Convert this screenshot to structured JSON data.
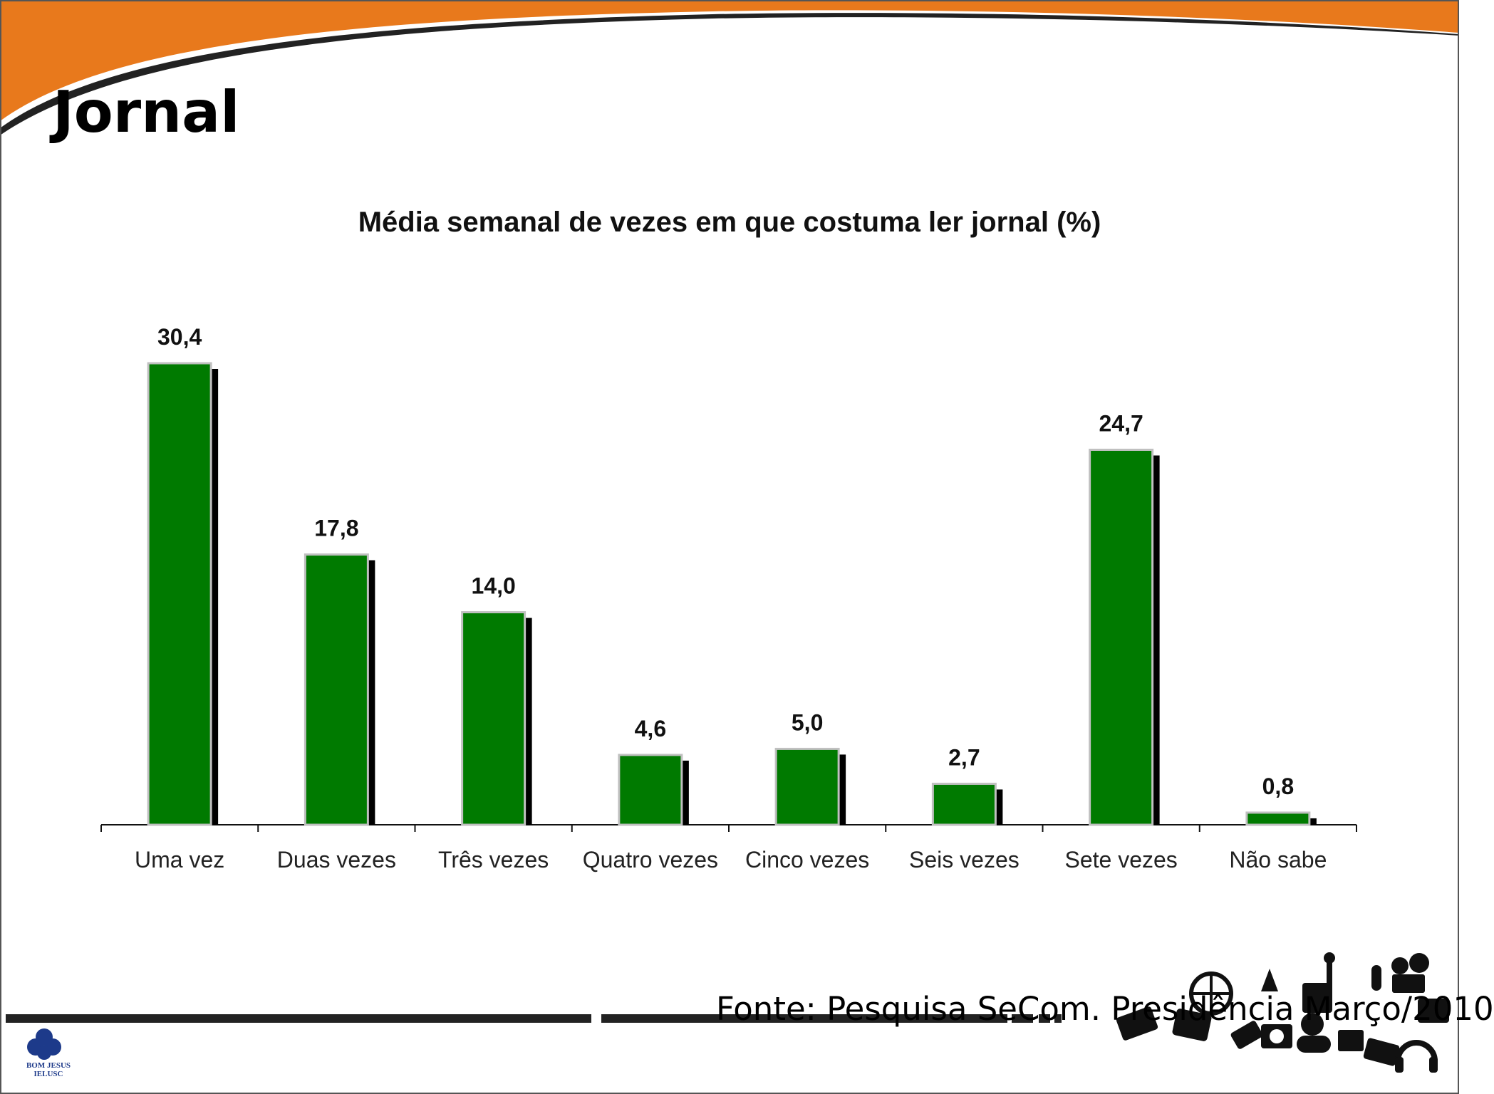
{
  "slide": {
    "title": "Jornal",
    "source": "Fonte: Pesquisa SeCom. Presidência Março/2010",
    "logo": {
      "line1": "BOM JESUS",
      "line2": "IELUSC"
    }
  },
  "colors": {
    "accent_orange": "#e8791c",
    "bar_fill": "#007a00",
    "bar_shadow": "#000000",
    "bar_border": "#c0c0c0"
  },
  "chart_data": {
    "type": "bar",
    "title": "Média semanal de vezes em que costuma ler jornal (%)",
    "xlabel": "",
    "ylabel": "",
    "categories": [
      "Uma vez",
      "Duas vezes",
      "Três vezes",
      "Quatro vezes",
      "Cinco vezes",
      "Seis vezes",
      "Sete vezes",
      "Não sabe"
    ],
    "values": [
      30.4,
      17.8,
      14.0,
      4.6,
      5.0,
      2.7,
      24.7,
      0.8
    ],
    "data_labels": [
      "30,4",
      "17,8",
      "14,0",
      "4,6",
      "5,0",
      "2,7",
      "24,7",
      "0,8"
    ],
    "ylim": [
      0,
      30.4
    ],
    "grid": false,
    "legend": "none"
  }
}
